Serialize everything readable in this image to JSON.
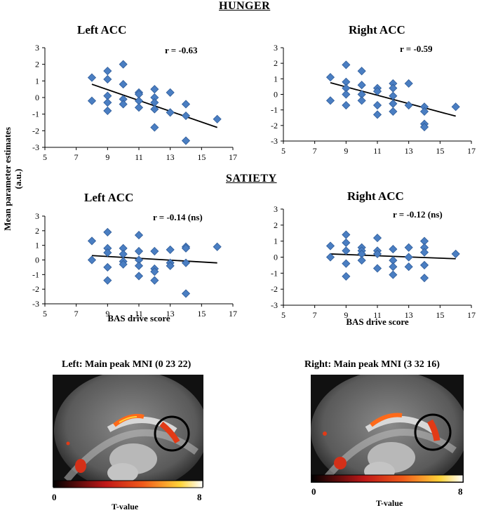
{
  "sections": {
    "hunger": "HUNGER",
    "satiety": "SATIETY"
  },
  "shared": {
    "ylabel_line1": "Mean parameter estimates",
    "ylabel_line2": "(a.u.)",
    "xlabel": "BAS drive score"
  },
  "chart_data": [
    {
      "type": "scatter",
      "section": "HUNGER",
      "title": "Left ACC",
      "annotation": "r = -0.63",
      "xlim": [
        5,
        17
      ],
      "ylim": [
        -3,
        3
      ],
      "xticks": [
        5,
        7,
        9,
        11,
        13,
        15,
        17
      ],
      "yticks": [
        -3,
        -2,
        -1,
        0,
        1,
        2,
        3
      ],
      "xlabel": "",
      "points": [
        [
          8,
          1.2
        ],
        [
          8,
          -0.2
        ],
        [
          9,
          1.6
        ],
        [
          9,
          1.1
        ],
        [
          9,
          0.1
        ],
        [
          9,
          -0.3
        ],
        [
          9,
          -0.8
        ],
        [
          10,
          2.0
        ],
        [
          10,
          0.8
        ],
        [
          10,
          -0.1
        ],
        [
          10,
          -0.4
        ],
        [
          11,
          0.3
        ],
        [
          11,
          0.2
        ],
        [
          11,
          -0.2
        ],
        [
          11,
          -0.6
        ],
        [
          12,
          0.5
        ],
        [
          12,
          0.0
        ],
        [
          12,
          -0.3
        ],
        [
          12,
          -0.7
        ],
        [
          12,
          -1.8
        ],
        [
          13,
          0.3
        ],
        [
          13,
          -0.9
        ],
        [
          14,
          -0.4
        ],
        [
          14,
          -1.1
        ],
        [
          14,
          -2.6
        ],
        [
          16,
          -1.3
        ]
      ],
      "fit": [
        [
          8,
          0.8
        ],
        [
          16,
          -1.8
        ]
      ]
    },
    {
      "type": "scatter",
      "section": "HUNGER",
      "title": "Right ACC",
      "annotation": "r = -0.59",
      "xlim": [
        5,
        17
      ],
      "ylim": [
        -3,
        3
      ],
      "xticks": [
        5,
        7,
        9,
        11,
        13,
        15,
        17
      ],
      "yticks": [
        -3,
        -2,
        -1,
        0,
        1,
        2,
        3
      ],
      "xlabel": "",
      "points": [
        [
          8,
          1.1
        ],
        [
          8,
          -0.4
        ],
        [
          9,
          1.9
        ],
        [
          9,
          0.8
        ],
        [
          9,
          0.4
        ],
        [
          9,
          0.0
        ],
        [
          9,
          -0.7
        ],
        [
          10,
          1.5
        ],
        [
          10,
          0.6
        ],
        [
          10,
          0.0
        ],
        [
          10,
          -0.4
        ],
        [
          11,
          0.4
        ],
        [
          11,
          0.2
        ],
        [
          11,
          -0.7
        ],
        [
          11,
          -1.3
        ],
        [
          12,
          0.7
        ],
        [
          12,
          0.4
        ],
        [
          12,
          -0.1
        ],
        [
          12,
          -0.6
        ],
        [
          12,
          -1.1
        ],
        [
          13,
          0.7
        ],
        [
          13,
          -0.7
        ],
        [
          14,
          -0.8
        ],
        [
          14,
          -1.1
        ],
        [
          14,
          -1.9
        ],
        [
          14,
          -2.1
        ],
        [
          16,
          -0.8
        ]
      ],
      "fit": [
        [
          8,
          0.75
        ],
        [
          16,
          -1.4
        ]
      ]
    },
    {
      "type": "scatter",
      "section": "SATIETY",
      "title": "Left ACC",
      "annotation": "r = -0.14 (ns)",
      "xlim": [
        5,
        17
      ],
      "ylim": [
        -3,
        3
      ],
      "xticks": [
        5,
        7,
        9,
        11,
        13,
        15,
        17
      ],
      "yticks": [
        -3,
        -2,
        -1,
        0,
        1,
        2,
        3
      ],
      "xlabel": "BAS drive score",
      "points": [
        [
          8,
          1.3
        ],
        [
          8,
          0.0
        ],
        [
          9,
          1.9
        ],
        [
          9,
          0.8
        ],
        [
          9,
          0.5
        ],
        [
          9,
          -0.5
        ],
        [
          9,
          -1.4
        ],
        [
          10,
          0.8
        ],
        [
          10,
          0.4
        ],
        [
          10,
          -0.1
        ],
        [
          10,
          -0.3
        ],
        [
          11,
          1.7
        ],
        [
          11,
          0.6
        ],
        [
          11,
          0.0
        ],
        [
          11,
          -0.4
        ],
        [
          11,
          -1.1
        ],
        [
          12,
          0.6
        ],
        [
          12,
          -0.6
        ],
        [
          12,
          -0.8
        ],
        [
          12,
          -1.4
        ],
        [
          13,
          0.7
        ],
        [
          13,
          -0.2
        ],
        [
          13,
          -0.4
        ],
        [
          14,
          0.9
        ],
        [
          14,
          0.8
        ],
        [
          14,
          -0.2
        ],
        [
          14,
          -2.3
        ],
        [
          16,
          0.9
        ]
      ],
      "fit": [
        [
          8,
          0.3
        ],
        [
          16,
          -0.2
        ]
      ]
    },
    {
      "type": "scatter",
      "section": "SATIETY",
      "title": "Right ACC",
      "annotation": "r = -0.12 (ns)",
      "xlim": [
        5,
        17
      ],
      "ylim": [
        -3,
        3
      ],
      "xticks": [
        5,
        7,
        9,
        11,
        13,
        15,
        17
      ],
      "yticks": [
        -3,
        -2,
        -1,
        0,
        1,
        2,
        3
      ],
      "xlabel": "BAS drive score",
      "points": [
        [
          8,
          0.7
        ],
        [
          8,
          0.0
        ],
        [
          9,
          1.4
        ],
        [
          9,
          0.9
        ],
        [
          9,
          0.4
        ],
        [
          9,
          -0.4
        ],
        [
          9,
          -1.2
        ],
        [
          10,
          0.6
        ],
        [
          10,
          0.4
        ],
        [
          10,
          0.2
        ],
        [
          10,
          -0.2
        ],
        [
          11,
          1.2
        ],
        [
          11,
          0.4
        ],
        [
          11,
          0.2
        ],
        [
          11,
          -0.7
        ],
        [
          12,
          0.5
        ],
        [
          12,
          -0.2
        ],
        [
          12,
          -0.6
        ],
        [
          12,
          -1.1
        ],
        [
          13,
          0.6
        ],
        [
          13,
          0.0
        ],
        [
          13,
          -0.6
        ],
        [
          14,
          1.0
        ],
        [
          14,
          0.6
        ],
        [
          14,
          0.3
        ],
        [
          14,
          -0.5
        ],
        [
          14,
          -1.3
        ],
        [
          16,
          0.2
        ]
      ],
      "fit": [
        [
          8,
          0.2
        ],
        [
          16,
          -0.1
        ]
      ]
    }
  ],
  "brain_panels": [
    {
      "title": "Left: Main peak MNI (0 23 22)",
      "cbar_min": "0",
      "cbar_max": "8",
      "cbar_label": "T-value"
    },
    {
      "title": "Right: Main peak MNI (3 32 16)",
      "cbar_min": "0",
      "cbar_max": "8",
      "cbar_label": "T-value"
    }
  ],
  "colors": {
    "marker": "#4A7EC2",
    "marker_edge": "#2F5C99",
    "fit_line": "#000000",
    "activation_dark": "#C01818",
    "activation_mid": "#F05A1A",
    "activation_light": "#FFD43A"
  }
}
